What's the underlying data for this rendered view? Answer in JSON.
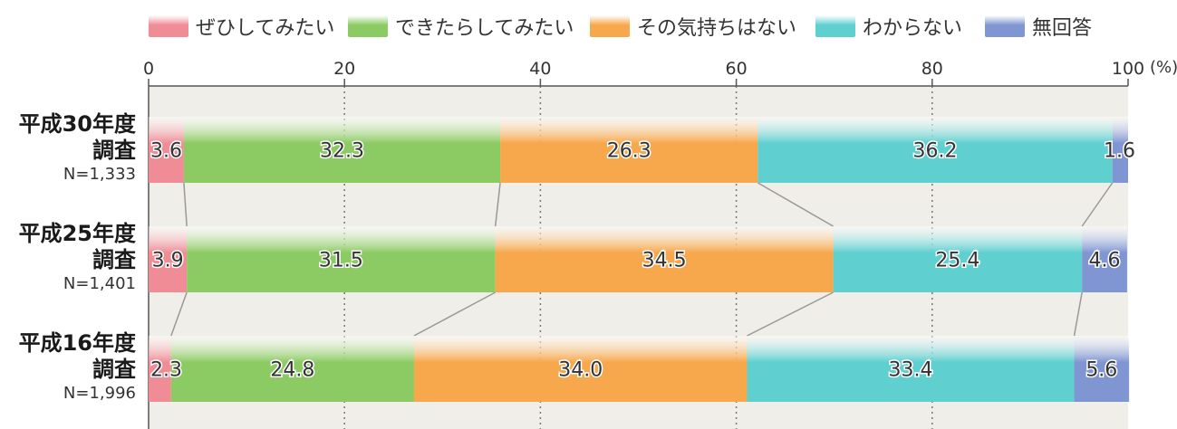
{
  "legend": [
    {
      "label": "ぜひしてみたい",
      "color": "#f08c96"
    },
    {
      "label": "できたらしてみたい",
      "color": "#8ccb63"
    },
    {
      "label": "その気持ちはない",
      "color": "#f7a84c"
    },
    {
      "label": "わからない",
      "color": "#5fd0cf"
    },
    {
      "label": "無回答",
      "color": "#7f96d2"
    }
  ],
  "chart_data": {
    "type": "bar",
    "orientation": "horizontal",
    "stacked": true,
    "categories": [
      "平成30年度\n調査",
      "平成25年度\n調査",
      "平成16年度\n調査"
    ],
    "sample_sizes": [
      "N=1,333",
      "N=1,401",
      "N=1,996"
    ],
    "series": [
      {
        "name": "ぜひしてみたい",
        "values": [
          3.6,
          3.9,
          2.3
        ]
      },
      {
        "name": "できたらしてみたい",
        "values": [
          32.3,
          31.5,
          24.8
        ]
      },
      {
        "name": "その気持ちはない",
        "values": [
          26.3,
          34.5,
          34.0
        ]
      },
      {
        "name": "わからない",
        "values": [
          36.2,
          25.4,
          33.4
        ]
      },
      {
        "name": "無回答",
        "values": [
          1.6,
          4.6,
          5.6
        ]
      }
    ],
    "xlim": [
      0,
      100
    ],
    "xticks": [
      "0",
      "20",
      "40",
      "60",
      "80",
      "100"
    ],
    "x_unit": "(%)",
    "grid": "vertical-dotted",
    "legend_position": "top",
    "connector_lines": true
  }
}
